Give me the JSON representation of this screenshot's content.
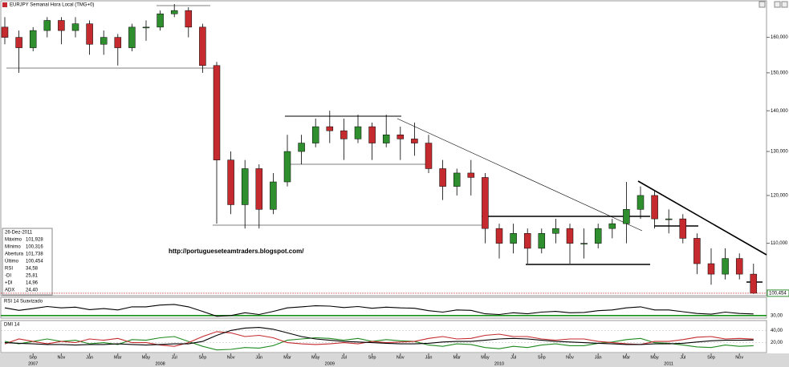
{
  "chart_data": [
    {
      "type": "candlestick",
      "title": "EURJPY Semanal Hora Local (TMG+0)",
      "annotation": "http://portugueseteamtraders.blogspot.com/",
      "x": [
        "2007-07",
        "2007-08",
        "2007-09",
        "2007-10",
        "2007-11",
        "2007-12",
        "2008-01",
        "2008-02",
        "2008-03",
        "2008-04",
        "2008-05",
        "2008-06",
        "2008-07",
        "2008-08",
        "2008-09",
        "2008-10",
        "2008-11",
        "2008-12",
        "2009-01",
        "2009-02",
        "2009-03",
        "2009-04",
        "2009-05",
        "2009-06",
        "2009-07",
        "2009-08",
        "2009-09",
        "2009-10",
        "2009-11",
        "2009-12",
        "2010-01",
        "2010-02",
        "2010-03",
        "2010-04",
        "2010-05",
        "2010-06",
        "2010-07",
        "2010-08",
        "2010-09",
        "2010-10",
        "2010-11",
        "2010-12",
        "2011-01",
        "2011-02",
        "2011-03",
        "2011-04",
        "2011-05",
        "2011-06",
        "2011-07",
        "2011-08",
        "2011-09",
        "2011-10",
        "2011-11",
        "2011-12"
      ],
      "open": [
        163,
        160,
        157,
        162,
        165,
        162,
        164,
        158,
        160,
        157,
        163,
        163,
        167,
        168,
        163,
        152,
        128,
        118,
        126,
        117,
        123,
        130,
        132,
        136,
        135,
        133,
        136,
        132,
        134,
        133,
        132,
        126,
        122,
        125,
        124,
        113,
        110,
        112,
        109,
        112,
        113,
        110,
        110,
        113,
        114,
        117,
        120,
        115,
        115,
        111,
        106,
        104,
        107,
        104
      ],
      "high": [
        166,
        162,
        163,
        166,
        166,
        166,
        165,
        162,
        161,
        164,
        165,
        168,
        170,
        169,
        164,
        153,
        130,
        128,
        127,
        125,
        134,
        134,
        138,
        140,
        138,
        139,
        137,
        139,
        136,
        137,
        134,
        128,
        126,
        128,
        125,
        114,
        114,
        113,
        113,
        115,
        114,
        113,
        114,
        115,
        123,
        122,
        121,
        117,
        116,
        112,
        109,
        109,
        108,
        106
      ],
      "low": [
        158,
        150,
        156,
        160,
        158,
        160,
        155,
        155,
        152,
        156,
        159,
        162,
        166,
        160,
        150,
        114,
        116,
        113,
        113,
        116,
        122,
        127,
        131,
        132,
        128,
        132,
        128,
        131,
        128,
        129,
        125,
        119,
        120,
        120,
        110,
        107,
        108,
        106,
        108,
        110,
        106,
        107,
        109,
        111,
        110,
        115,
        113,
        112,
        110,
        104,
        102,
        103,
        103,
        100.316
      ],
      "close": [
        160,
        157,
        162,
        165,
        162,
        164,
        158,
        160,
        157,
        163,
        163,
        167,
        168,
        163,
        152,
        128,
        118,
        126,
        117,
        123,
        130,
        132,
        136,
        135,
        133,
        136,
        132,
        134,
        133,
        132,
        126,
        122,
        125,
        124,
        113,
        110,
        112,
        109,
        112,
        113,
        110,
        110,
        113,
        114,
        117,
        120,
        115,
        115,
        111,
        106,
        104,
        107,
        104,
        100.454
      ],
      "last_label": {
        "value": 100.454,
        "label": "100,454"
      },
      "up_color": "#2f8f2f",
      "down_color": "#c42a2e",
      "ylim": [
        100,
        171
      ],
      "log_scale": true,
      "yticks": [
        {
          "value": 110,
          "label": "110,000"
        },
        {
          "value": 120,
          "label": "120,000"
        },
        {
          "value": 130,
          "label": "130,000"
        },
        {
          "value": 140,
          "label": "140,000"
        },
        {
          "value": 150,
          "label": "150,000"
        },
        {
          "value": 160,
          "label": "160,000"
        }
      ],
      "xticks": [
        {
          "value": "2007-09",
          "label": "Sep"
        },
        {
          "value": "2007-11",
          "label": "Nov"
        },
        {
          "value": "2008-01",
          "label": "Jan"
        },
        {
          "value": "2008-03",
          "label": "Mar"
        },
        {
          "value": "2008-05",
          "label": "May"
        },
        {
          "value": "2008-07",
          "label": "Jul"
        },
        {
          "value": "2008-09",
          "label": "Sep"
        },
        {
          "value": "2008-11",
          "label": "Nov"
        },
        {
          "value": "2009-01",
          "label": "Jan"
        },
        {
          "value": "2009-03",
          "label": "Mar"
        },
        {
          "value": "2009-05",
          "label": "May"
        },
        {
          "value": "2009-07",
          "label": "Jul"
        },
        {
          "value": "2009-09",
          "label": "Sep"
        },
        {
          "value": "2009-11",
          "label": "Nov"
        },
        {
          "value": "2010-01",
          "label": "Jan"
        },
        {
          "value": "2010-03",
          "label": "Mar"
        },
        {
          "value": "2010-05",
          "label": "May"
        },
        {
          "value": "2010-07",
          "label": "Jul"
        },
        {
          "value": "2010-09",
          "label": "Sep"
        },
        {
          "value": "2010-11",
          "label": "Nov"
        },
        {
          "value": "2011-01",
          "label": "Jan"
        },
        {
          "value": "2011-03",
          "label": "Mar"
        },
        {
          "value": "2011-05",
          "label": "May"
        },
        {
          "value": "2011-07",
          "label": "Jul"
        },
        {
          "value": "2011-09",
          "label": "Sep"
        },
        {
          "value": "2011-11",
          "label": "Nov"
        }
      ],
      "year_ticks": [
        {
          "value": "2007-09",
          "label": "2007"
        },
        {
          "value": "2008-06",
          "label": "2008"
        },
        {
          "value": "2009-06",
          "label": "2009"
        },
        {
          "value": "2010-06",
          "label": "2010"
        },
        {
          "value": "2011-06",
          "label": "2011"
        }
      ],
      "info": {
        "date": "26-Dez-2011",
        "rows": [
          {
            "label": "Máximo",
            "value": "101,928",
            "color": "#000"
          },
          {
            "label": "Mínimo",
            "value": "100,316",
            "color": "#000"
          },
          {
            "label": "Abertura",
            "value": "101,738",
            "color": "#000"
          },
          {
            "label": "Último",
            "value": "100,454",
            "color": "#2f8f2f"
          },
          {
            "label": "RSI",
            "value": "34,58",
            "color": "#000"
          },
          {
            "label": "-DI",
            "value": "25,81",
            "color": "#c42a2e"
          },
          {
            "label": "+DI",
            "value": "14,96",
            "color": "#2f8f2f"
          },
          {
            "label": "ADX",
            "value": "24,40",
            "color": "#000"
          }
        ]
      }
    },
    {
      "type": "line",
      "title": "RSI 14 Suavizado",
      "series": [
        {
          "name": "RSI",
          "color": "#000",
          "values": [
            52,
            45,
            50,
            56,
            52,
            54,
            47,
            50,
            46,
            55,
            55,
            60,
            62,
            55,
            42,
            28,
            30,
            38,
            33,
            42,
            52,
            55,
            58,
            57,
            53,
            56,
            51,
            54,
            52,
            51,
            44,
            40,
            46,
            45,
            35,
            33,
            38,
            35,
            40,
            42,
            38,
            39,
            44,
            46,
            52,
            55,
            46,
            46,
            41,
            36,
            34,
            40,
            36,
            34.58
          ]
        }
      ],
      "ylim": [
        25,
        80
      ],
      "yticks": [
        {
          "value": 30,
          "label": "30,00"
        }
      ],
      "ref_color": "#1a8f1a"
    },
    {
      "type": "line",
      "title": "DMI 14",
      "series": [
        {
          "name": "+DI",
          "color": "#1f8a1f",
          "values": [
            22,
            18,
            22,
            26,
            22,
            24,
            18,
            20,
            17,
            25,
            24,
            28,
            30,
            22,
            14,
            8,
            9,
            12,
            11,
            15,
            24,
            26,
            28,
            27,
            24,
            27,
            22,
            25,
            23,
            22,
            16,
            14,
            18,
            17,
            12,
            10,
            14,
            12,
            16,
            18,
            15,
            15,
            19,
            21,
            25,
            27,
            20,
            19,
            16,
            13,
            12,
            16,
            14,
            14.96
          ]
        },
        {
          "name": "-DI",
          "color": "#c42a2e",
          "values": [
            18,
            26,
            22,
            18,
            22,
            20,
            26,
            24,
            27,
            20,
            20,
            16,
            14,
            20,
            30,
            38,
            36,
            30,
            32,
            28,
            20,
            18,
            17,
            18,
            20,
            18,
            22,
            20,
            21,
            22,
            27,
            30,
            26,
            27,
            32,
            34,
            30,
            30,
            26,
            24,
            26,
            26,
            22,
            20,
            18,
            17,
            22,
            22,
            25,
            29,
            30,
            26,
            27,
            25.81
          ]
        },
        {
          "name": "ADX",
          "color": "#000",
          "values": [
            20,
            19,
            18,
            17,
            17,
            16,
            17,
            17,
            18,
            17,
            16,
            17,
            18,
            18,
            22,
            32,
            40,
            44,
            45,
            42,
            36,
            30,
            26,
            24,
            22,
            21,
            20,
            19,
            18,
            18,
            19,
            21,
            22,
            22,
            24,
            26,
            27,
            26,
            24,
            22,
            21,
            20,
            19,
            18,
            17,
            17,
            18,
            18,
            19,
            21,
            23,
            24,
            24,
            24.4
          ]
        }
      ],
      "ylim": [
        5,
        55
      ],
      "yticks": [
        {
          "value": 20,
          "label": "20,00"
        },
        {
          "value": 40,
          "label": "40,00"
        }
      ]
    }
  ]
}
